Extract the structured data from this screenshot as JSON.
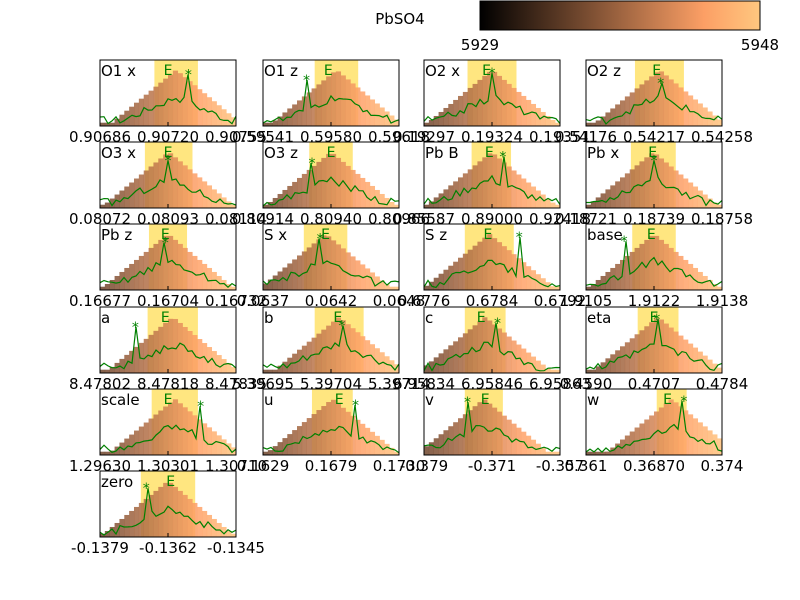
{
  "title": "PbSO4",
  "colorbar": {
    "min_label": "5929",
    "max_label": "5948",
    "colormap": "copper"
  },
  "colors": {
    "line": "#008000",
    "marker": "#008000",
    "band": "#ffe680",
    "frame": "#000000"
  },
  "chart_data": [
    {
      "type": "bar",
      "name": "O1 x",
      "ticks": [
        "0.90686",
        "0.90720",
        "0.90755"
      ],
      "peak": 0.78,
      "peak_pos": 0.65,
      "mean_pos": 0.5,
      "band": [
        0.4,
        0.72
      ]
    },
    {
      "type": "bar",
      "name": "O1 z",
      "ticks": [
        "0.59541",
        "0.59580",
        "0.59618"
      ],
      "peak": 0.7,
      "peak_pos": 0.32,
      "mean_pos": 0.48,
      "band": [
        0.38,
        0.7
      ]
    },
    {
      "type": "bar",
      "name": "O2 x",
      "ticks": [
        "0.19297",
        "0.19324",
        "0.19351"
      ],
      "peak": 0.8,
      "peak_pos": 0.5,
      "mean_pos": 0.46,
      "band": [
        0.32,
        0.68
      ]
    },
    {
      "type": "bar",
      "name": "O2 z",
      "ticks": [
        "0.54176",
        "0.54217",
        "0.54258"
      ],
      "peak": 0.65,
      "peak_pos": 0.55,
      "mean_pos": 0.52,
      "band": [
        0.36,
        0.72
      ]
    },
    {
      "type": "bar",
      "name": "O3 x",
      "ticks": [
        "0.08072",
        "0.08093",
        "0.08114"
      ],
      "peak": 0.72,
      "peak_pos": 0.5,
      "mean_pos": 0.5,
      "band": [
        0.33,
        0.68
      ]
    },
    {
      "type": "bar",
      "name": "O3 z",
      "ticks": [
        "0.80914",
        "0.80940",
        "0.80966"
      ],
      "peak": 0.68,
      "peak_pos": 0.36,
      "mean_pos": 0.5,
      "band": [
        0.34,
        0.66
      ]
    },
    {
      "type": "bar",
      "name": "Pb B",
      "ticks": [
        "0.85587",
        "0.89000",
        "0.92418"
      ],
      "peak": 0.78,
      "peak_pos": 0.58,
      "mean_pos": 0.48,
      "band": [
        0.35,
        0.64
      ]
    },
    {
      "type": "bar",
      "name": "Pb x",
      "ticks": [
        "0.18721",
        "0.18739",
        "0.18758"
      ],
      "peak": 0.72,
      "peak_pos": 0.5,
      "mean_pos": 0.49,
      "band": [
        0.33,
        0.66
      ]
    },
    {
      "type": "bar",
      "name": "Pb z",
      "ticks": [
        "0.16677",
        "0.16704",
        "0.16732"
      ],
      "peak": 0.72,
      "peak_pos": 0.48,
      "mean_pos": 0.48,
      "band": [
        0.36,
        0.64
      ]
    },
    {
      "type": "bar",
      "name": "S x",
      "ticks": [
        "0.0637",
        "0.0642",
        "0.0648"
      ],
      "peak": 0.78,
      "peak_pos": 0.42,
      "mean_pos": 0.46,
      "band": [
        0.3,
        0.62
      ]
    },
    {
      "type": "bar",
      "name": "S z",
      "ticks": [
        "0.6776",
        "0.6784",
        "0.6792"
      ],
      "peak": 0.8,
      "peak_pos": 0.7,
      "mean_pos": 0.47,
      "band": [
        0.3,
        0.66
      ]
    },
    {
      "type": "bar",
      "name": "base",
      "ticks": [
        "1.9105",
        "1.9122",
        "1.9138"
      ],
      "peak": 0.74,
      "peak_pos": 0.28,
      "mean_pos": 0.48,
      "band": [
        0.34,
        0.66
      ]
    },
    {
      "type": "bar",
      "name": "a",
      "ticks": [
        "8.47802",
        "8.47818",
        "8.47835"
      ],
      "peak": 0.7,
      "peak_pos": 0.26,
      "mean_pos": 0.48,
      "band": [
        0.35,
        0.72
      ]
    },
    {
      "type": "bar",
      "name": "b",
      "ticks": [
        "5.39695",
        "5.39704",
        "5.39714"
      ],
      "peak": 0.72,
      "peak_pos": 0.58,
      "mean_pos": 0.55,
      "band": [
        0.38,
        0.74
      ]
    },
    {
      "type": "bar",
      "name": "c",
      "ticks": [
        "6.95834",
        "6.95846",
        "6.95863"
      ],
      "peak": 0.76,
      "peak_pos": 0.54,
      "mean_pos": 0.42,
      "band": [
        0.3,
        0.6
      ]
    },
    {
      "type": "bar",
      "name": "eta",
      "ticks": [
        "0.4590",
        "0.4707",
        "0.4784"
      ],
      "peak": 0.82,
      "peak_pos": 0.52,
      "mean_pos": 0.5,
      "band": [
        0.38,
        0.68
      ]
    },
    {
      "type": "bar",
      "name": "scale",
      "ticks": [
        "1.29630",
        "1.30301",
        "1.30710"
      ],
      "peak": 0.74,
      "peak_pos": 0.74,
      "mean_pos": 0.5,
      "band": [
        0.38,
        0.72
      ]
    },
    {
      "type": "bar",
      "name": "u",
      "ticks": [
        "0.1629",
        "0.1679",
        "0.1730"
      ],
      "peak": 0.76,
      "peak_pos": 0.68,
      "mean_pos": 0.56,
      "band": [
        0.36,
        0.66
      ]
    },
    {
      "type": "bar",
      "name": "v",
      "ticks": [
        "-0.379",
        "-0.371",
        "-0.357"
      ],
      "peak": 0.8,
      "peak_pos": 0.32,
      "mean_pos": 0.45,
      "band": [
        0.3,
        0.58
      ]
    },
    {
      "type": "bar",
      "name": "w",
      "ticks": [
        "0.361",
        "0.36870",
        "0.374"
      ],
      "peak": 0.82,
      "peak_pos": 0.72,
      "mean_pos": 0.6,
      "band": [
        0.52,
        0.74
      ]
    },
    {
      "type": "bar",
      "name": "zero",
      "ticks": [
        "-0.1379",
        "-0.1362",
        "-0.1345"
      ],
      "peak": 0.74,
      "peak_pos": 0.34,
      "mean_pos": 0.52,
      "band": [
        0.3,
        0.7
      ]
    }
  ]
}
